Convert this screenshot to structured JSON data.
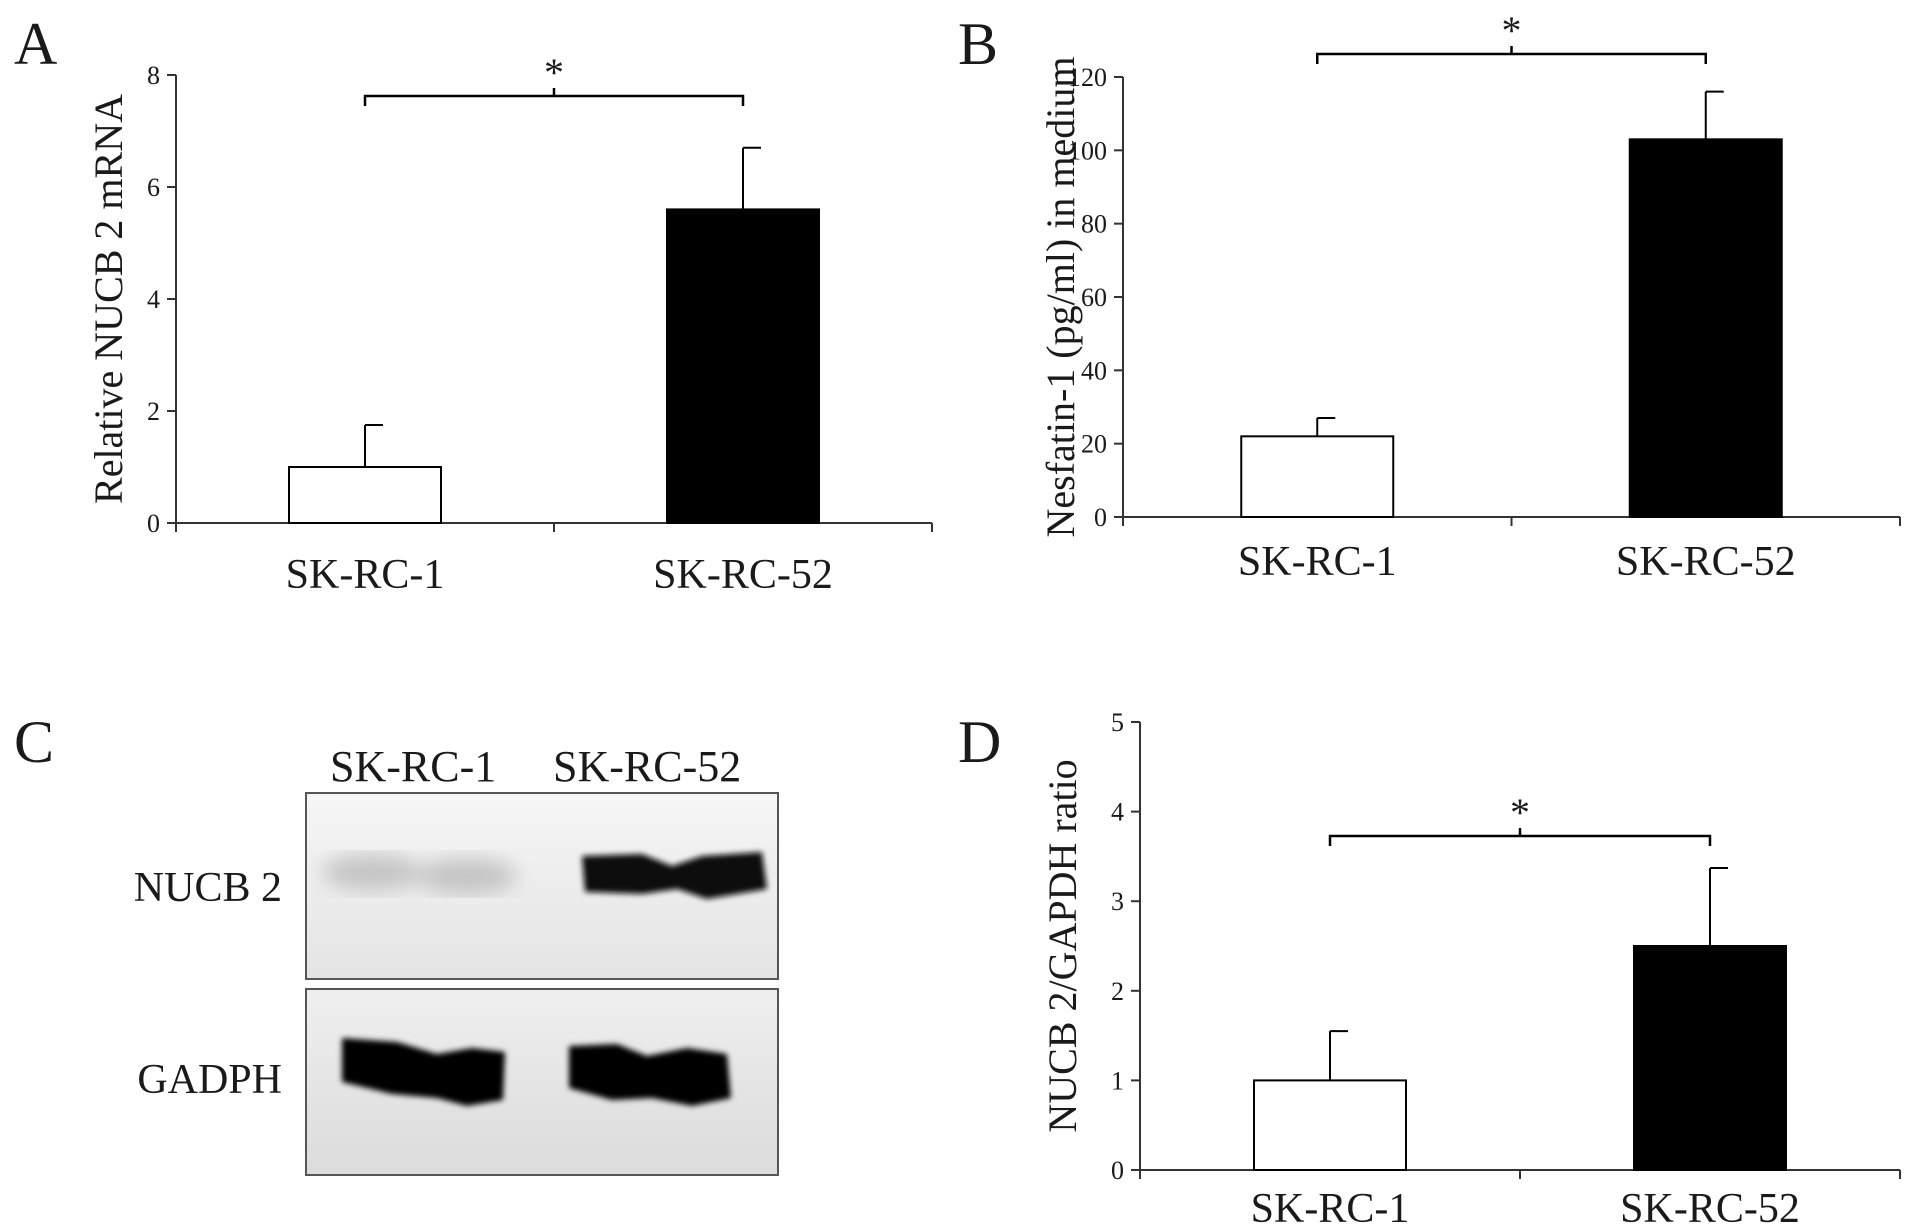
{
  "panels": {
    "a": {
      "letter": "A"
    },
    "b": {
      "letter": "B"
    },
    "c": {
      "letter": "C"
    },
    "d": {
      "letter": "D"
    }
  },
  "blot": {
    "lanes": [
      "SK-RC-1",
      "SK-RC-52"
    ],
    "rows": [
      {
        "label": "NUCB 2",
        "band_intensity": [
          0.15,
          0.95
        ]
      },
      {
        "label": "GADPH",
        "band_intensity": [
          1.0,
          1.0
        ]
      }
    ]
  },
  "colors": {
    "bar_fill": [
      "#ffffff",
      "#000000"
    ],
    "axis": "#333333"
  },
  "chart_data": [
    {
      "panel": "A",
      "type": "bar",
      "ylabel": "Relative NUCB 2 mRNA",
      "xlabel": "",
      "categories": [
        "SK-RC-1",
        "SK-RC-52"
      ],
      "values": [
        1.0,
        5.6
      ],
      "errors": [
        0.75,
        1.1
      ],
      "ylim": [
        0,
        8
      ],
      "yticks": [
        0,
        2,
        4,
        6,
        8
      ],
      "significance": "*"
    },
    {
      "panel": "B",
      "type": "bar",
      "ylabel": "Nesfatin-1 (pg/ml) in medium",
      "xlabel": "",
      "categories": [
        "SK-RC-1",
        "SK-RC-52"
      ],
      "values": [
        22,
        103
      ],
      "errors": [
        5,
        13
      ],
      "ylim": [
        0,
        120
      ],
      "yticks": [
        0,
        20,
        40,
        60,
        80,
        100,
        120
      ],
      "significance": "*"
    },
    {
      "panel": "D",
      "type": "bar",
      "ylabel": "NUCB 2/GAPDH ratio",
      "xlabel": "",
      "categories": [
        "SK-RC-1",
        "SK-RC-52"
      ],
      "values": [
        1.0,
        2.5
      ],
      "errors": [
        0.55,
        0.87
      ],
      "ylim": [
        0,
        5
      ],
      "yticks": [
        0,
        1,
        2,
        3,
        4,
        5
      ],
      "significance": "*"
    }
  ]
}
